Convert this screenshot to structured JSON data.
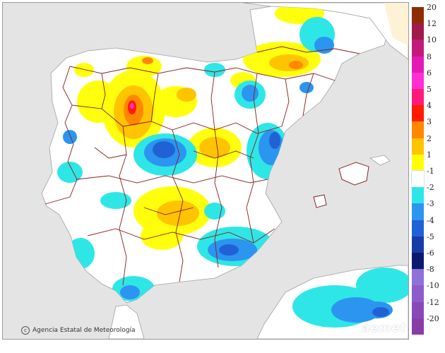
{
  "credit": {
    "organization": "Agencia Estatal de Meteorología",
    "logo_text": "aemet",
    "copyright_icon": "copyright-circle-icon"
  },
  "legend": {
    "entries": [
      {
        "label": "20",
        "color": "#8b2d00"
      },
      {
        "label": "12",
        "color": "#9e1c4a"
      },
      {
        "label": "10",
        "color": "#c21a7a"
      },
      {
        "label": "8",
        "color": "#e41ab6"
      },
      {
        "label": "6",
        "color": "#ff2fd3"
      },
      {
        "label": "5",
        "color": "#ff1a7a"
      },
      {
        "label": "4",
        "color": "#ff1a00"
      },
      {
        "label": "3",
        "color": "#ff8800"
      },
      {
        "label": "2",
        "color": "#ffc400"
      },
      {
        "label": "1",
        "color": "#ffff00"
      },
      {
        "label": "-1",
        "color": "#ffffff"
      },
      {
        "label": "-2",
        "color": "#2fe6e6"
      },
      {
        "label": "-3",
        "color": "#2b95f0"
      },
      {
        "label": "-4",
        "color": "#2062d6"
      },
      {
        "label": "-5",
        "color": "#1a3aa8"
      },
      {
        "label": "-6",
        "color": "#0c1a6e"
      },
      {
        "label": "-8",
        "color": "#8e72d8"
      },
      {
        "label": "-10",
        "color": "#8e5cc8"
      },
      {
        "label": "-12",
        "color": "#8848b8"
      },
      {
        "label": "-20",
        "color": "#8a3ca6"
      }
    ]
  },
  "colors": {
    "sea": "#e4e4e4",
    "land": "#ffffff",
    "border": "#8b1a1a"
  }
}
